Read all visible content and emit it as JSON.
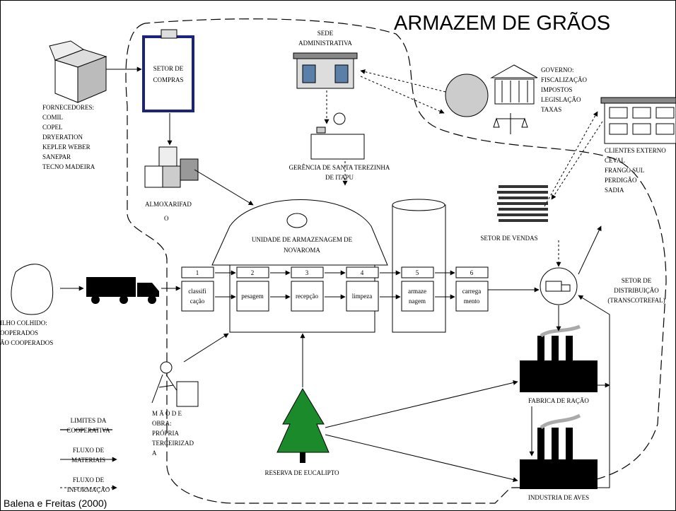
{
  "title": "ARMAZEM DE GRÃOS",
  "source": "Balena e Freitas (2000)",
  "nodes": {
    "setor_compras": [
      "SETOR DE",
      "COMPRAS"
    ],
    "fornecedores": [
      "FORNECEDORES:",
      "COMIL",
      "COPEL",
      "DRYERATION",
      "KEPLER WEBER",
      "SANEPAR",
      "TECNO MADEIRA"
    ],
    "almoxarifado": [
      "ALMOXARIFAD",
      "O"
    ],
    "sede": [
      "SEDE",
      "ADMINISTRATIVA"
    ],
    "gerencia": [
      "GERÊNCIA DE SANTA TEREZINHA",
      "DE ITAPU"
    ],
    "governo": [
      "GOVERNO:",
      "FISCALIZAÇÃO",
      "IMPOSTOS",
      "LEGISLAÇÃO",
      "TAXAS"
    ],
    "clientes": [
      "CLIENTES EXTERNO",
      "CEVAL",
      "FRANGO SUL",
      "PERDIGÃO",
      "SADIA"
    ],
    "setor_vendas": [
      "SETOR DE VENDAS"
    ],
    "unidade": [
      "UNIDADE DE ARMAZENAGEM DE",
      "NOVAROMA"
    ],
    "distribuicao": [
      "SETOR DE",
      "DISTRIBUIÇÃO",
      "(TRANSCOTREFAL)"
    ],
    "milho": [
      "ILHO COLHIDO:",
      "OOPERADOS",
      "ÃO COOPERADOS"
    ],
    "mao_de_obra": [
      "M Ã O    D E",
      "OBRA:",
      "PRÓPRIA",
      "TERCEIRIZAD",
      "A"
    ],
    "fabrica_racao": [
      "FABRICA DE RAÇÃO"
    ],
    "industria_aves": [
      "INDUSTRIA DE AVES"
    ],
    "reserva": [
      "RESERVA DE EUCALIPTO"
    ]
  },
  "steps": [
    {
      "number": 1,
      "label": [
        "classifi",
        "cação"
      ]
    },
    {
      "number": 2,
      "label": [
        "pesagem"
      ]
    },
    {
      "number": 3,
      "label": [
        "recepção"
      ]
    },
    {
      "number": 4,
      "label": [
        "limpeza"
      ]
    },
    {
      "number": 5,
      "label": [
        "armaze",
        "nagem"
      ]
    },
    {
      "number": 6,
      "label": [
        "carrega",
        "mento"
      ]
    }
  ],
  "legend": [
    [
      "LIMITES DA",
      "COOPERATIVA"
    ],
    [
      "FLUXO DE",
      "MATERIAIS"
    ],
    [
      "FLUXO DE",
      "INFORMAÇÃO"
    ]
  ]
}
